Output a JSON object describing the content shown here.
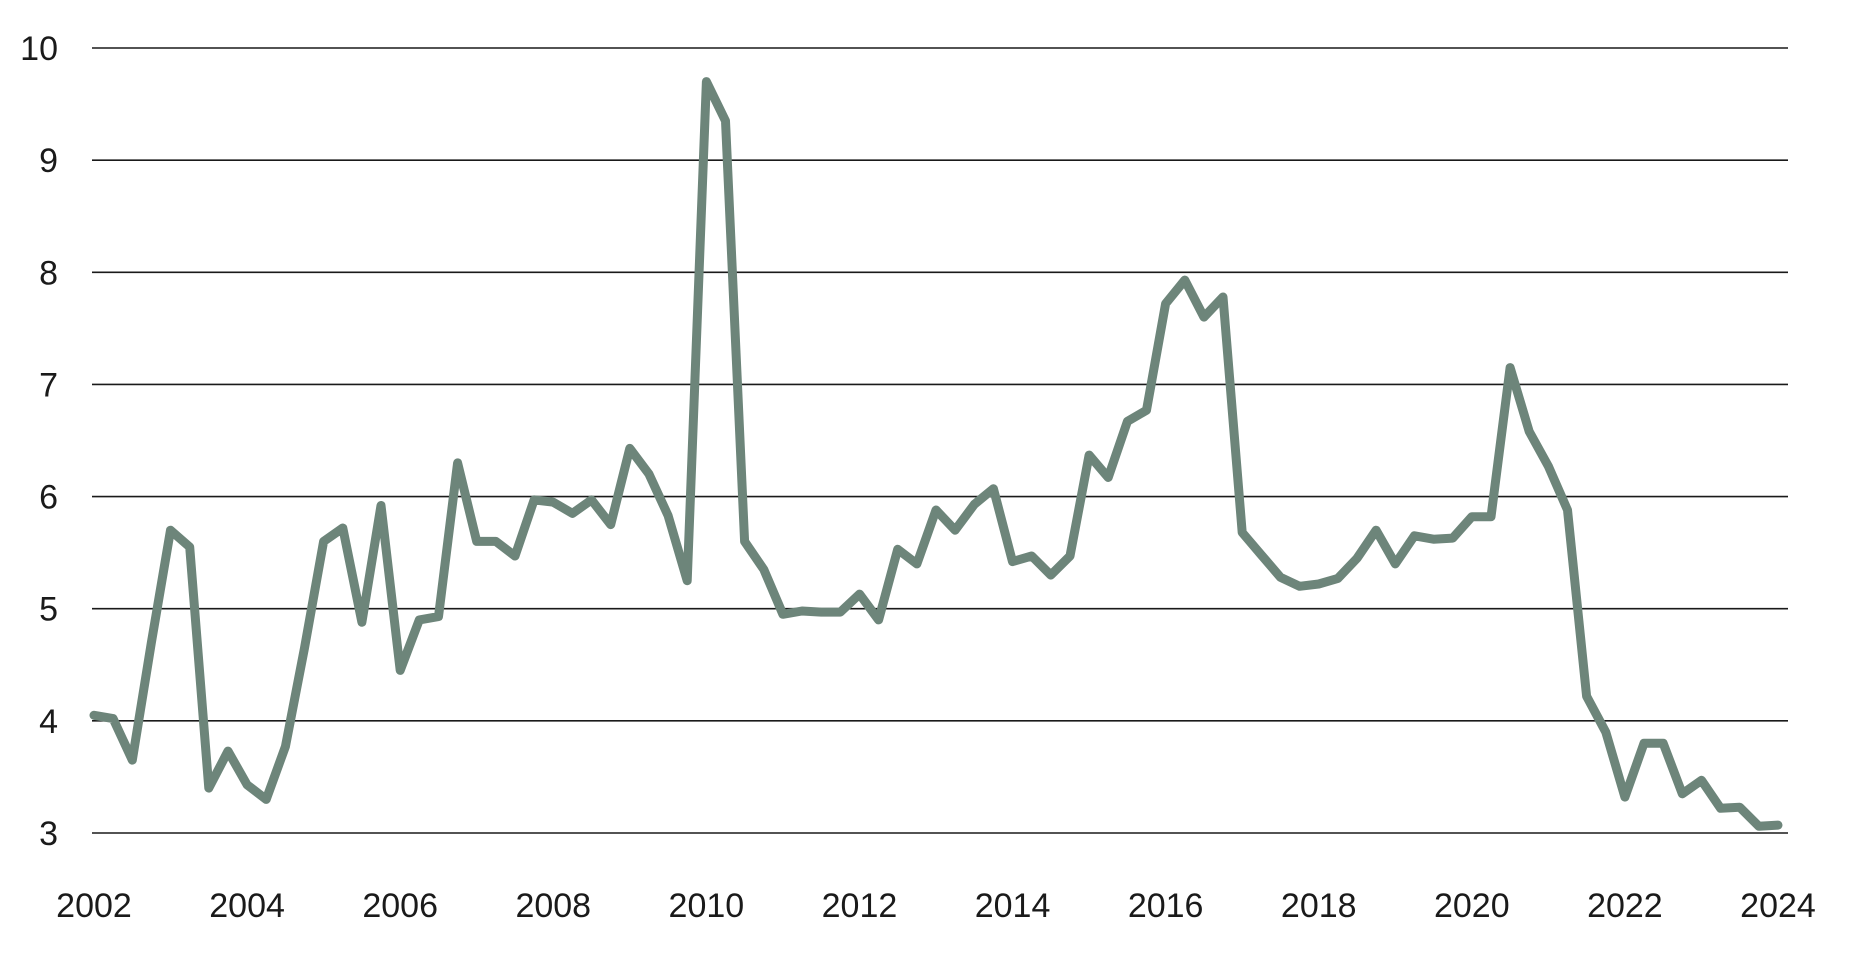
{
  "chart_data": {
    "type": "line",
    "title": "",
    "xlabel": "",
    "ylabel": "",
    "xlim": [
      2002,
      2024
    ],
    "ylim": [
      3,
      10
    ],
    "grid": true,
    "legend": "none",
    "line_color": "#6d857a",
    "x_ticks": [
      "2002",
      "2004",
      "2006",
      "2008",
      "2010",
      "2012",
      "2014",
      "2016",
      "2018",
      "2020",
      "2022",
      "2024"
    ],
    "y_ticks": [
      "3",
      "4",
      "5",
      "6",
      "7",
      "8",
      "9",
      "10"
    ],
    "series": [
      {
        "x": [
          2002.0,
          2002.25,
          2002.5,
          2002.75,
          2003.0,
          2003.25,
          2003.5,
          2003.75,
          2004.0,
          2004.25,
          2004.5,
          2004.75,
          2005.0,
          2005.25,
          2005.5,
          2005.75,
          2006.0,
          2006.25,
          2006.5,
          2006.75,
          2007.0,
          2007.25,
          2007.5,
          2007.75,
          2008.0,
          2008.25,
          2008.5,
          2008.75,
          2009.0,
          2009.25,
          2009.5,
          2009.75,
          2010.0,
          2010.25,
          2010.5,
          2010.75,
          2011.0,
          2011.25,
          2011.5,
          2011.75,
          2012.0,
          2012.25,
          2012.5,
          2012.75,
          2013.0,
          2013.25,
          2013.5,
          2013.75,
          2014.0,
          2014.25,
          2014.5,
          2014.75,
          2015.0,
          2015.25,
          2015.5,
          2015.75,
          2016.0,
          2016.25,
          2016.5,
          2016.75,
          2017.0,
          2017.25,
          2017.5,
          2017.75,
          2018.0,
          2018.25,
          2018.5,
          2018.75,
          2019.0,
          2019.25,
          2019.5,
          2019.75,
          2020.0,
          2020.25,
          2020.5,
          2020.75,
          2021.0,
          2021.25,
          2021.5,
          2021.75,
          2022.0,
          2022.25,
          2022.5,
          2022.75,
          2023.0,
          2023.25,
          2023.5,
          2023.75,
          2024.0
        ],
        "y": [
          4.05,
          4.02,
          3.65,
          4.7,
          5.7,
          5.55,
          3.4,
          3.73,
          3.43,
          3.3,
          3.77,
          4.65,
          5.6,
          5.72,
          4.88,
          5.92,
          4.45,
          4.9,
          4.93,
          6.3,
          5.6,
          5.6,
          5.47,
          5.97,
          5.95,
          5.85,
          5.97,
          5.75,
          6.43,
          6.2,
          5.83,
          5.25,
          9.7,
          9.35,
          5.6,
          5.35,
          4.95,
          4.98,
          4.97,
          4.97,
          5.13,
          4.9,
          5.53,
          5.4,
          5.88,
          5.7,
          5.93,
          6.07,
          5.42,
          5.47,
          5.3,
          5.47,
          6.37,
          6.17,
          6.67,
          6.77,
          7.72,
          7.93,
          7.6,
          7.78,
          5.68,
          5.48,
          5.28,
          5.2,
          5.22,
          5.27,
          5.45,
          5.7,
          5.4,
          5.65,
          5.62,
          5.63,
          5.82,
          5.82,
          7.15,
          6.58,
          6.27,
          5.88,
          4.22,
          3.9,
          3.32,
          3.8,
          3.8,
          3.35,
          3.47,
          3.22,
          3.23,
          3.06,
          3.07
        ]
      }
    ]
  }
}
